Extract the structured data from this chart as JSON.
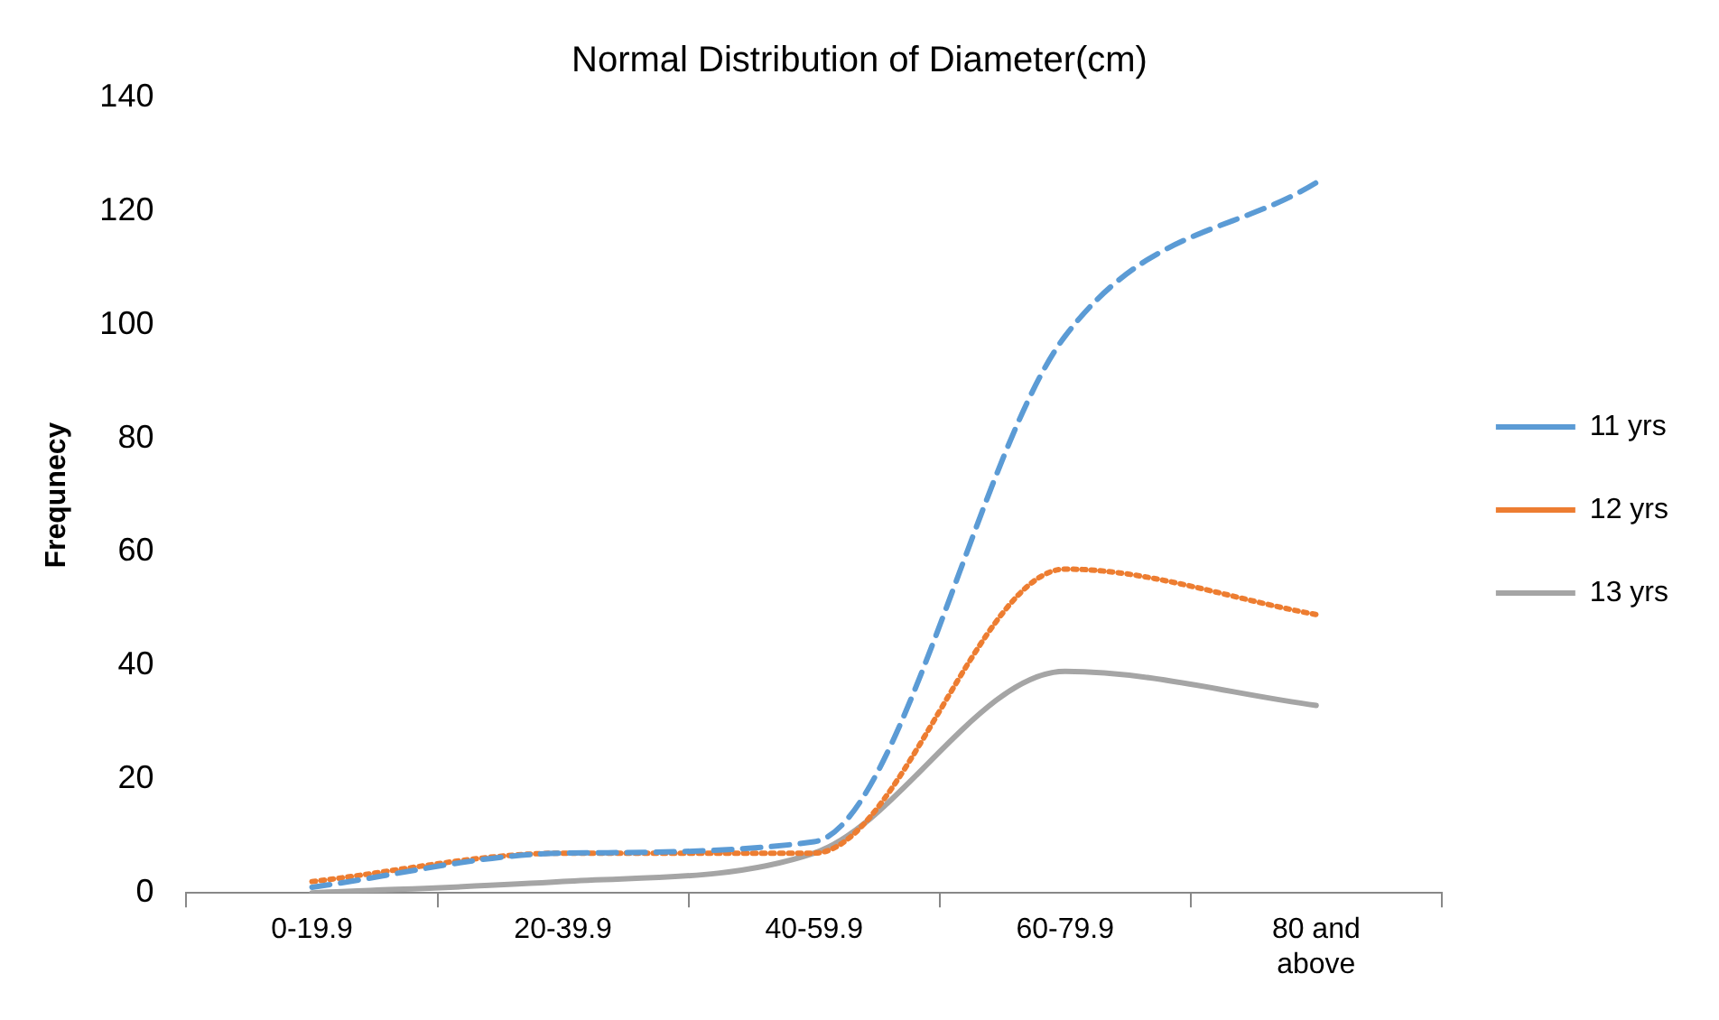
{
  "chart_data": {
    "type": "line",
    "title": "Normal Distribution of Diameter(cm)",
    "ylabel": "Frequnecy",
    "categories": [
      "0-19.9",
      "20-39.9",
      "40-59.9",
      "60-79.9",
      "80 and above"
    ],
    "series": [
      {
        "name": "11 yrs",
        "color": "#5b9bd5",
        "line_style": "dashed",
        "values": [
          1,
          7,
          9,
          98,
          125
        ]
      },
      {
        "name": "12 yrs",
        "color": "#ed7d31",
        "line_style": "dotted",
        "values": [
          2,
          7,
          7,
          57,
          49
        ]
      },
      {
        "name": "13 yrs",
        "color": "#a5a5a5",
        "line_style": "solid",
        "values": [
          0,
          2,
          7,
          39,
          33
        ]
      }
    ],
    "ylim": [
      0,
      140
    ],
    "yticks": [
      0,
      20,
      40,
      60,
      80,
      100,
      120,
      140
    ],
    "grid": false,
    "legend": "right",
    "marker": "none"
  }
}
